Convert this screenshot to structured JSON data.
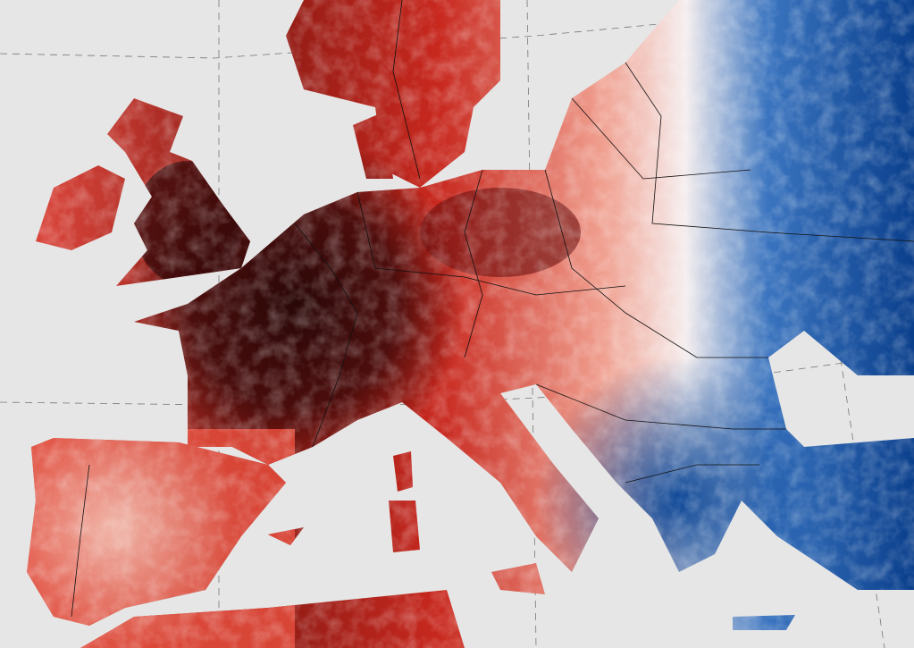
{
  "map": {
    "background_color": "#e6e6e6",
    "graticule": true,
    "borders_color": "#111111",
    "color_scale": {
      "hot_extreme": "#3a0a0a",
      "hot": "#c8281e",
      "warm": "#f4b8a8",
      "neutral": "#f5f5f5",
      "cool": "#5a8ccc",
      "cold": "#0a3f8c"
    }
  }
}
